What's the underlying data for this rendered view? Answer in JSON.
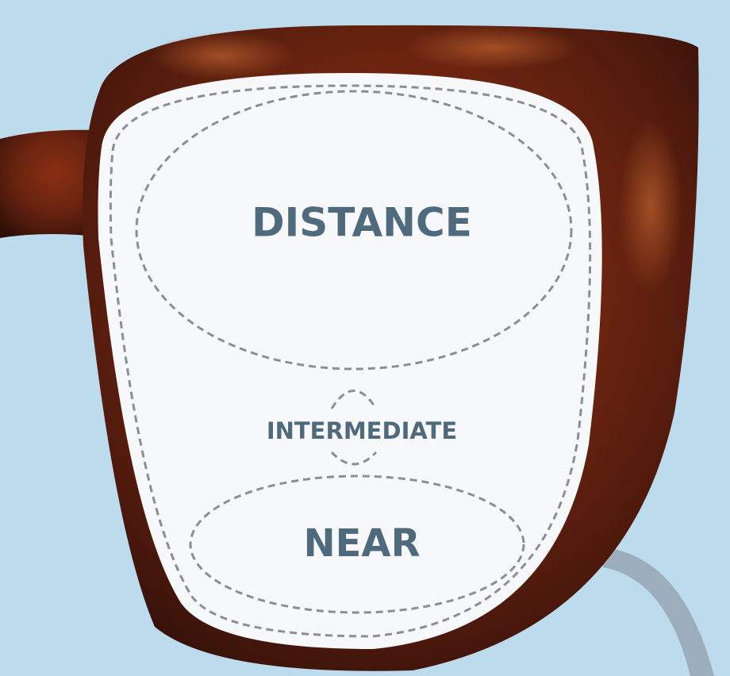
{
  "zones": [
    {
      "label": "DISTANCE"
    },
    {
      "label": "INTERMEDIATE"
    },
    {
      "label": "NEAR"
    }
  ]
}
